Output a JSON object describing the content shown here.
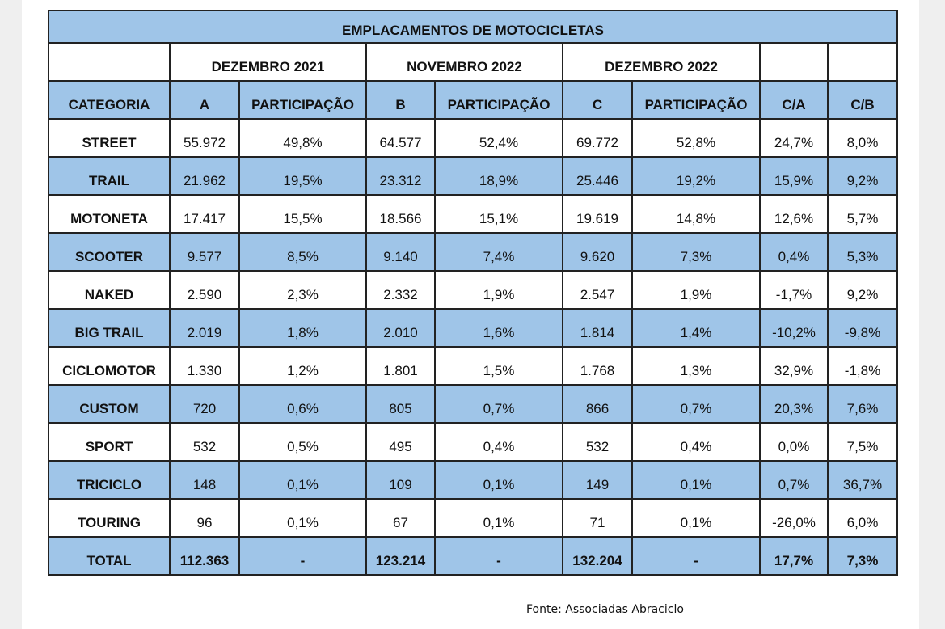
{
  "title": "EMPLACAMENTOS DE MOTOCICLETAS",
  "periods": [
    "DEZEMBRO 2021",
    "NOVEMBRO 2022",
    "DEZEMBRO 2022"
  ],
  "columns": [
    "CATEGORIA",
    "A",
    "PARTICIPAÇÃO",
    "B",
    "PARTICIPAÇÃO",
    "C",
    "PARTICIPAÇÃO",
    "C/A",
    "C/B"
  ],
  "rows": [
    [
      "STREET",
      "55.972",
      "49,8%",
      "64.577",
      "52,4%",
      "69.772",
      "52,8%",
      "24,7%",
      "8,0%"
    ],
    [
      "TRAIL",
      "21.962",
      "19,5%",
      "23.312",
      "18,9%",
      "25.446",
      "19,2%",
      "15,9%",
      "9,2%"
    ],
    [
      "MOTONETA",
      "17.417",
      "15,5%",
      "18.566",
      "15,1%",
      "19.619",
      "14,8%",
      "12,6%",
      "5,7%"
    ],
    [
      "SCOOTER",
      "9.577",
      "8,5%",
      "9.140",
      "7,4%",
      "9.620",
      "7,3%",
      "0,4%",
      "5,3%"
    ],
    [
      "NAKED",
      "2.590",
      "2,3%",
      "2.332",
      "1,9%",
      "2.547",
      "1,9%",
      "-1,7%",
      "9,2%"
    ],
    [
      "BIG TRAIL",
      "2.019",
      "1,8%",
      "2.010",
      "1,6%",
      "1.814",
      "1,4%",
      "-10,2%",
      "-9,8%"
    ],
    [
      "CICLOMOTOR",
      "1.330",
      "1,2%",
      "1.801",
      "1,5%",
      "1.768",
      "1,3%",
      "32,9%",
      "-1,8%"
    ],
    [
      "CUSTOM",
      "720",
      "0,6%",
      "805",
      "0,7%",
      "866",
      "0,7%",
      "20,3%",
      "7,6%"
    ],
    [
      "SPORT",
      "532",
      "0,5%",
      "495",
      "0,4%",
      "532",
      "0,4%",
      "0,0%",
      "7,5%"
    ],
    [
      "TRICICLO",
      "148",
      "0,1%",
      "109",
      "0,1%",
      "149",
      "0,1%",
      "0,7%",
      "36,7%"
    ],
    [
      "TOURING",
      "96",
      "0,1%",
      "67",
      "0,1%",
      "71",
      "0,1%",
      "-26,0%",
      "6,0%"
    ]
  ],
  "total": [
    "TOTAL",
    "112.363",
    "-",
    "123.214",
    "-",
    "132.204",
    "-",
    "17,7%",
    "7,3%"
  ],
  "source": "Fonte: Associadas Abraciclo"
}
